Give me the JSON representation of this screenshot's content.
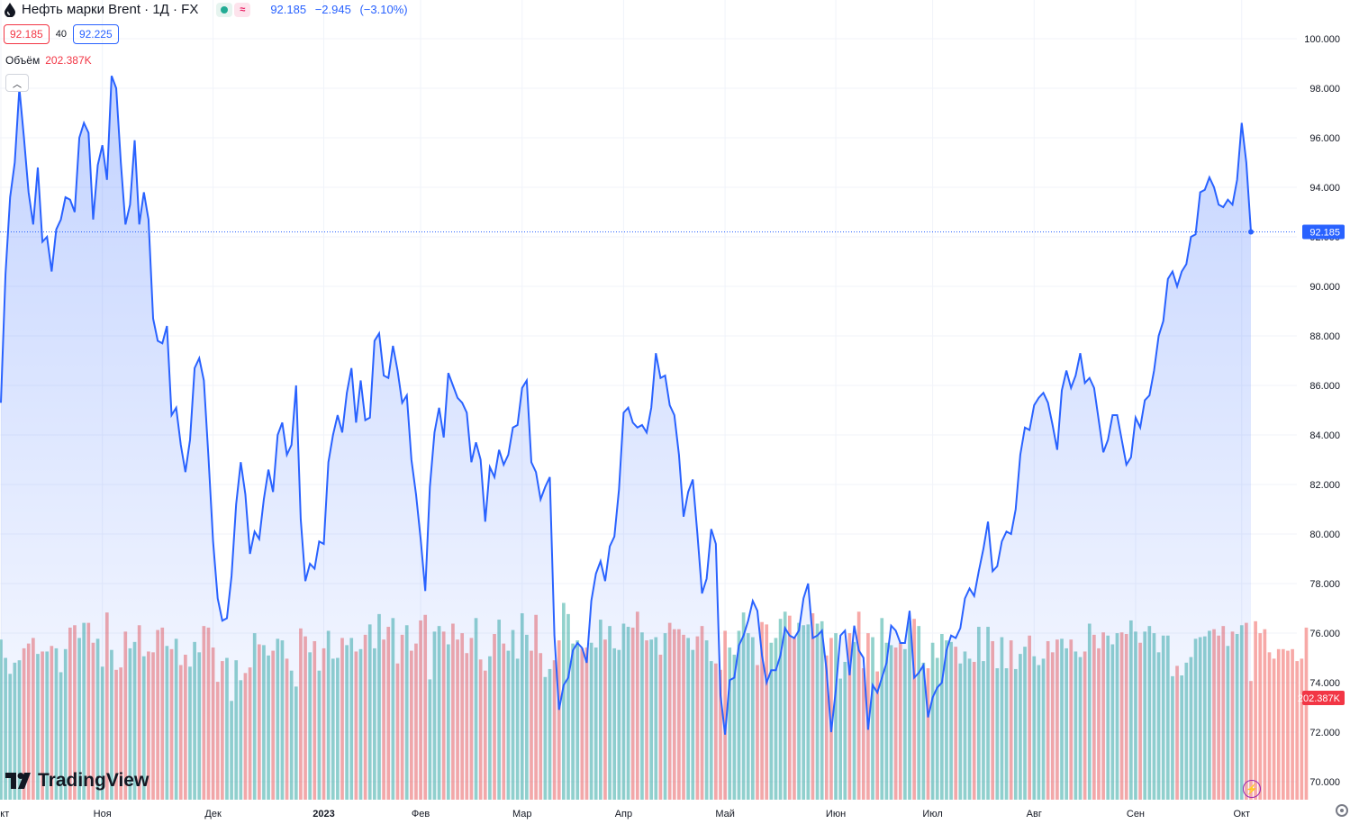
{
  "header": {
    "symbol_title": "Нефть марки Brent · 1Д · FX",
    "last_price": "92.185",
    "change": "−2.945",
    "change_pct": "(−3.10%)",
    "sell_price": "92.185",
    "spread": "40",
    "buy_price": "92.225",
    "volume_label": "Объём",
    "volume_value": "202.387K",
    "badge_wave": "≈"
  },
  "logo_text": "TradingView",
  "colors": {
    "line": "#2962ff",
    "vol_up": "#26a69a",
    "vol_down": "#ef5350",
    "price_label_bg": "#2962ff",
    "vol_label_bg": "#f23645"
  },
  "chart_data": {
    "type": "area",
    "series": [
      {
        "name": "Нефть марки Brent",
        "values": [
          85.3,
          90.5,
          93.6,
          95.0,
          98.0,
          96.0,
          93.8,
          92.5,
          94.8,
          91.8,
          92.0,
          90.6,
          92.3,
          92.7,
          93.6,
          93.5,
          93.0,
          96.0,
          96.6,
          96.2,
          92.7,
          94.9,
          95.7,
          94.3,
          98.5,
          98.0,
          95.0,
          92.5,
          93.3,
          95.9,
          92.5,
          93.8,
          92.7,
          88.7,
          87.8,
          87.7,
          88.4,
          84.8,
          85.1,
          83.6,
          82.5,
          83.8,
          86.7,
          87.1,
          86.2,
          83.1,
          79.7,
          77.4,
          76.5,
          76.6,
          78.3,
          81.2,
          82.9,
          81.6,
          79.2,
          80.1,
          79.8,
          81.4,
          82.6,
          81.7,
          84.0,
          84.5,
          83.2,
          83.6,
          86.0,
          80.6,
          78.1,
          78.8,
          78.6,
          79.7,
          79.6,
          82.9,
          84.0,
          84.8,
          84.1,
          85.7,
          86.7,
          84.5,
          86.2,
          84.6,
          84.7,
          87.8,
          88.1,
          86.4,
          86.3,
          87.6,
          86.6,
          85.3,
          85.6,
          83.0,
          81.6,
          79.8,
          77.7,
          81.9,
          84.1,
          85.1,
          83.9,
          86.5,
          86.0,
          85.5,
          85.3,
          84.9,
          82.9,
          83.7,
          83.0,
          80.5,
          82.7,
          82.3,
          83.4,
          82.8,
          83.2,
          84.3,
          84.4,
          85.9,
          86.2,
          82.9,
          82.5,
          81.4,
          81.9,
          82.3,
          75.9,
          72.9,
          73.9,
          74.2,
          75.3,
          75.6,
          75.4,
          74.8,
          77.3,
          78.4,
          78.9,
          78.1,
          79.5,
          79.9,
          81.8,
          84.9,
          85.1,
          84.5,
          84.3,
          84.4,
          84.1,
          85.1,
          87.3,
          86.3,
          86.4,
          85.2,
          84.8,
          83.2,
          80.7,
          81.7,
          82.2,
          80.0,
          77.6,
          78.2,
          80.2,
          79.6,
          73.5,
          71.9,
          74.1,
          74.2,
          75.5,
          75.9,
          76.5,
          77.3,
          76.9,
          75.1,
          74.0,
          74.5,
          74.5,
          75.1,
          76.2,
          75.9,
          75.8,
          76.1,
          77.4,
          78.0,
          75.8,
          75.9,
          76.1,
          74.5,
          72.0,
          73.7,
          75.9,
          76.1,
          74.3,
          76.3,
          75.3,
          75.0,
          72.1,
          73.9,
          73.6,
          74.2,
          74.8,
          76.3,
          76.1,
          75.6,
          75.6,
          76.9,
          74.2,
          74.4,
          74.7,
          72.6,
          73.4,
          73.8,
          74.0,
          75.3,
          75.9,
          75.8,
          76.2,
          77.4,
          77.8,
          77.5,
          78.5,
          79.4,
          80.5,
          78.5,
          78.7,
          79.7,
          80.1,
          80.0,
          81.0,
          83.2,
          84.3,
          84.2,
          85.2,
          85.5,
          85.7,
          85.3,
          84.4,
          83.4,
          85.8,
          86.6,
          85.9,
          86.4,
          87.3,
          86.1,
          86.3,
          85.9,
          84.6,
          83.3,
          83.8,
          84.8,
          84.8,
          83.8,
          82.8,
          83.1,
          84.7,
          84.3,
          85.4,
          85.6,
          86.6,
          88.0,
          88.6,
          90.3,
          90.6,
          90.0,
          90.6,
          90.9,
          92.0,
          92.1,
          93.8,
          93.9,
          94.4,
          94.0,
          93.3,
          93.2,
          93.5,
          93.3,
          94.3,
          96.6,
          95.0,
          92.2
        ]
      },
      {
        "name": "Объём",
        "values": [
          201,
          178,
          158,
          172,
          175,
          190,
          196,
          203,
          183,
          186,
          186,
          193,
          190,
          160,
          189,
          216,
          219,
          203,
          222,
          222,
          197,
          202,
          167,
          235,
          188,
          163,
          166,
          211,
          190,
          198,
          219,
          180,
          186,
          185,
          213,
          216,
          193,
          189,
          202,
          169,
          182,
          167,
          198,
          185,
          218,
          216,
          191,
          148,
          174,
          178,
          124,
          175,
          150,
          159,
          166,
          209,
          195,
          194,
          181,
          187,
          202,
          200,
          177,
          162,
          142,
          215,
          205,
          185,
          199,
          162,
          190,
          212,
          177,
          178,
          203,
          194,
          203,
          186,
          189,
          207,
          220,
          190,
          233,
          201,
          217,
          228,
          171,
          207,
          219,
          187,
          196,
          225,
          232,
          151,
          211,
          218,
          211,
          195,
          221,
          201,
          209,
          184,
          203,
          228,
          176,
          162,
          180,
          208,
          226,
          196,
          187,
          213,
          177,
          234,
          207,
          187,
          232,
          184,
          154,
          164,
          175,
          200,
          247,
          233,
          196,
          200,
          190,
          191,
          197,
          191,
          226,
          201,
          218,
          190,
          188,
          221,
          217,
          216,
          236,
          210,
          200,
          201,
          204,
          182,
          209,
          222,
          214,
          214,
          207,
          203,
          188,
          205,
          218,
          200,
          174,
          171,
          163,
          212,
          191,
          182,
          212,
          235,
          209,
          204,
          169,
          223,
          220,
          197,
          203,
          227,
          236,
          231,
          204,
          222,
          219,
          220,
          234,
          221,
          224,
          181,
          203,
          209,
          152,
          173,
          209,
          198,
          236,
          165,
          209,
          204,
          161,
          228,
          197,
          194,
          191,
          197,
          189,
          224,
          227,
          218,
          172,
          165,
          197,
          178,
          208,
          200,
          198,
          192,
          171,
          186,
          177,
          173,
          217,
          174,
          217,
          199,
          165,
          204,
          165,
          200,
          164,
          183,
          192,
          206,
          180,
          169,
          177,
          199,
          185,
          201,
          202,
          190,
          201,
          186,
          179,
          186,
          221,
          207,
          190,
          210,
          206,
          195,
          209,
          210,
          208,
          225,
          211,
          197,
          211,
          218,
          209,
          185,
          206,
          206,
          155,
          168,
          156,
          172,
          179,
          202,
          204,
          205,
          212,
          214,
          206,
          218,
          193,
          211,
          208,
          219,
          222,
          149,
          224,
          209,
          214,
          185,
          177,
          189,
          189,
          187,
          189,
          174,
          177,
          216
        ]
      }
    ],
    "x_ticks": [
      "Окт",
      "Ноя",
      "Дек",
      "2023",
      "Фев",
      "Мар",
      "Апр",
      "Май",
      "Июн",
      "Июл",
      "Авг",
      "Сен",
      "Окт"
    ],
    "y_ticks": [
      "100.000",
      "98.000",
      "96.000",
      "94.000",
      "92.000",
      "90.000",
      "88.000",
      "86.000",
      "84.000",
      "82.000",
      "80.000",
      "78.000",
      "76.000",
      "74.000",
      "72.000",
      "70.000"
    ],
    "ylim": [
      69.5,
      100.9
    ],
    "last_value_label": "92.185",
    "volume_label": "202.387K"
  }
}
